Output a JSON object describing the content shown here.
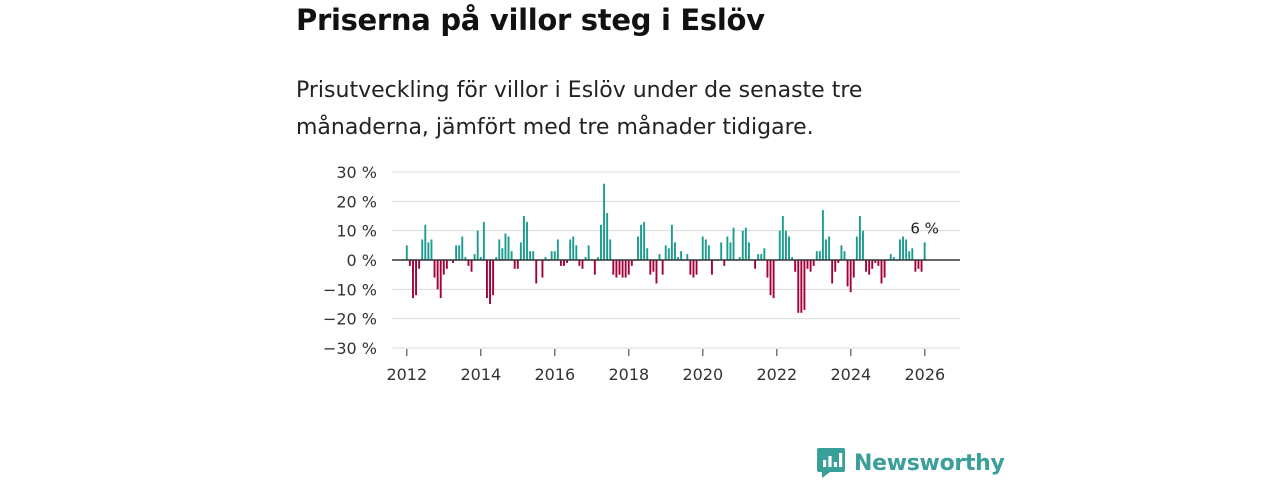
{
  "header": {
    "title": "Priserna på villor steg i Eslöv",
    "subtitle": "Prisutveckling för villor i Eslöv under de senaste tre månaderna, jämfört med tre månader tidigare."
  },
  "logo": {
    "text": "Newsworthy",
    "icon": "newsworthy-logo-icon"
  },
  "colors": {
    "positive": "#1a9c8f",
    "negative": "#a4003a",
    "grid": "#d9d9d9",
    "zero": "#333333",
    "brand": "#3a9f98"
  },
  "chart_data": {
    "type": "bar",
    "title": "Priserna på villor steg i Eslöv",
    "subtitle": "Prisutveckling för villor i Eslöv under de senaste tre månaderna, jämfört med tre månader tidigare.",
    "xlabel": "",
    "ylabel": "",
    "unit": "%",
    "ylim": [
      -30,
      30
    ],
    "y_ticks": [
      30,
      20,
      10,
      0,
      -10,
      -20,
      -30
    ],
    "y_tick_labels": [
      "30 %",
      "20 %",
      "10 %",
      "0 %",
      "−10 %",
      "−20 %",
      "−30 %"
    ],
    "x_range": [
      2011.6,
      2026.95
    ],
    "x_ticks": [
      2012,
      2014,
      2016,
      2018,
      2020,
      2022,
      2024,
      2026
    ],
    "x_tick_labels": [
      "2012",
      "2014",
      "2016",
      "2018",
      "2020",
      "2022",
      "2024",
      "2026"
    ],
    "start": 2012.0,
    "step": 0.0833,
    "values": [
      5,
      -2,
      -13,
      -12,
      -3,
      7,
      12,
      6,
      7,
      -6,
      -10,
      -13,
      -5,
      -3,
      0,
      -1,
      5,
      5,
      8,
      1,
      -2,
      -4,
      2,
      10,
      1,
      13,
      -13,
      -15,
      -12,
      1,
      7,
      4,
      9,
      8,
      3,
      -3,
      -3,
      6,
      15,
      13,
      3,
      3,
      -8,
      0,
      -6,
      1,
      0,
      3,
      3,
      7,
      -2,
      -2,
      -1,
      7,
      8,
      5,
      -2,
      -3,
      1,
      5,
      0,
      -5,
      1,
      12,
      26,
      16,
      7,
      -5,
      -6,
      -5,
      -6,
      -6,
      -5,
      -2,
      0,
      8,
      12,
      13,
      4,
      -5,
      -4,
      -8,
      2,
      -5,
      5,
      4,
      12,
      6,
      1,
      3,
      0,
      2,
      -5,
      -6,
      -5,
      0,
      8,
      7,
      5,
      -5,
      0,
      0,
      6,
      -2,
      8,
      6,
      11,
      0,
      1,
      10,
      11,
      6,
      0,
      -3,
      2,
      2,
      4,
      -6,
      -12,
      -13,
      0,
      10,
      15,
      10,
      8,
      1,
      -4,
      -18,
      -18,
      -17,
      -3,
      -4,
      -2,
      3,
      3,
      17,
      7,
      8,
      -8,
      -4,
      -1,
      5,
      3,
      -9,
      -11,
      -6,
      8,
      15,
      10,
      -4,
      -5,
      -3,
      -1,
      -2,
      -8,
      -6,
      0,
      2,
      1,
      0,
      7,
      8,
      7,
      3,
      4,
      -4,
      -3,
      -4,
      6
    ],
    "annotation": {
      "label": "6 %",
      "value": 6,
      "position": "last-bar"
    }
  }
}
